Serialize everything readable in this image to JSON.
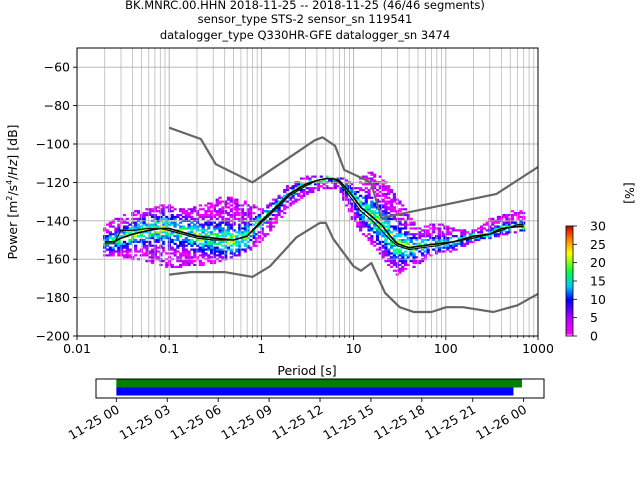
{
  "title_lines": [
    "BK.MNRC.00.HHN   2018-11-25 -- 2018-11-25  (46/46 segments)",
    "sensor_type STS-2 sensor_sn 119541",
    "datalogger_type Q330HR-GFE datalogger_sn 3474"
  ],
  "chart_data": [
    {
      "type": "heatmap",
      "chart_name": "PPSD",
      "xlabel": "Period [s]",
      "ylabel": "Power [m²/s⁴/Hz] [dB]",
      "xscale": "log",
      "xlim": [
        0.01,
        1000
      ],
      "ylim": [
        -200,
        -50
      ],
      "x_ticks": [
        0.01,
        0.1,
        1,
        10,
        100,
        1000
      ],
      "x_tick_labels": [
        "0.01",
        "0.1",
        "1",
        "10",
        "100",
        "1000"
      ],
      "y_ticks": [
        -200,
        -180,
        -160,
        -140,
        -120,
        -100,
        -80,
        -60
      ],
      "y_tick_labels": [
        "−200",
        "−180",
        "−160",
        "−140",
        "−120",
        "−100",
        "−80",
        "−60"
      ],
      "grid": true,
      "colorbar": {
        "label": "[%]",
        "range": [
          0,
          30
        ],
        "ticks": [
          0,
          5,
          10,
          15,
          20,
          25,
          30
        ],
        "colormap": "pqlx"
      },
      "colors": {
        "noise_model": "#666666",
        "mean": "#000000",
        "mode": "#111111"
      },
      "series": [
        {
          "role": "noise_model_high",
          "x": [
            0.1,
            0.22,
            0.32,
            0.8,
            3.8,
            4.6,
            6.3,
            7.9,
            15.4,
            20,
            354.8,
            1000
          ],
          "y": [
            -91.5,
            -97.4,
            -110.5,
            -120,
            -98,
            -96.5,
            -101,
            -113.5,
            -120,
            -138.5,
            -126,
            -112
          ]
        },
        {
          "role": "noise_model_low",
          "x": [
            0.1,
            0.17,
            0.4,
            0.8,
            1.24,
            2.4,
            4.3,
            5,
            6,
            10,
            12,
            15.6,
            21.9,
            31.6,
            45,
            70,
            101,
            154,
            328,
            600,
            1000
          ],
          "y": [
            -168,
            -166.7,
            -166.7,
            -169.2,
            -163.7,
            -148.6,
            -141.1,
            -141.1,
            -149.3,
            -163.7,
            -166,
            -162,
            -177.5,
            -185,
            -187.5,
            -187.5,
            -185,
            -185,
            -187.5,
            -184,
            -178
          ]
        },
        {
          "role": "mean",
          "x": [
            0.02,
            0.025,
            0.03,
            0.04,
            0.06,
            0.08,
            0.1,
            0.14,
            0.2,
            0.3,
            0.5,
            0.7,
            1,
            1.5,
            2,
            3,
            4,
            5,
            6,
            7,
            9,
            12,
            16,
            20,
            25,
            30,
            40,
            55,
            80,
            120,
            200,
            300,
            400,
            600,
            700
          ],
          "y": [
            -151,
            -151,
            -149,
            -147,
            -145,
            -144,
            -144,
            -146,
            -148,
            -149,
            -150,
            -148,
            -140,
            -132,
            -126,
            -121,
            -119,
            -118,
            -118,
            -119,
            -125,
            -133,
            -138,
            -142,
            -148,
            -152,
            -154,
            -153,
            -152,
            -151,
            -148,
            -147,
            -144,
            -143,
            -143
          ]
        },
        {
          "role": "mode",
          "x": [
            0.02,
            0.025,
            0.03,
            0.04,
            0.06,
            0.08,
            0.1,
            0.14,
            0.2,
            0.3,
            0.5,
            0.7,
            1,
            1.5,
            2,
            3,
            4,
            5,
            6,
            7,
            9,
            12,
            16,
            20,
            25,
            30,
            40,
            55,
            80,
            120,
            200,
            300,
            400,
            600,
            700
          ],
          "y": [
            -152,
            -152,
            -145,
            -145,
            -144,
            -144,
            -145,
            -147,
            -149,
            -150,
            -150,
            -148,
            -141,
            -133,
            -127,
            -122,
            -119,
            -118,
            -118,
            -120,
            -127,
            -135,
            -140,
            -145,
            -150,
            -153,
            -155,
            -154,
            -153,
            -151,
            -149,
            -147,
            -145,
            -142,
            -142
          ]
        }
      ],
      "density_envelope": {
        "x": [
          0.02,
          0.03,
          0.05,
          0.08,
          0.1,
          0.15,
          0.25,
          0.4,
          0.7,
          1,
          1.5,
          2,
          3,
          5,
          7,
          10,
          15,
          20,
          30,
          50,
          80,
          120,
          200,
          300,
          400,
          600,
          700
        ],
        "upper": [
          -144,
          -138,
          -135,
          -133,
          -132,
          -135,
          -132,
          -128,
          -131,
          -135,
          -128,
          -122,
          -118,
          -117,
          -117,
          -122,
          -115,
          -118,
          -128,
          -145,
          -142,
          -144,
          -146,
          -140,
          -138,
          -135,
          -135
        ],
        "lower": [
          -158,
          -158,
          -160,
          -162,
          -164,
          -163,
          -162,
          -160,
          -156,
          -150,
          -140,
          -132,
          -126,
          -122,
          -123,
          -140,
          -150,
          -157,
          -168,
          -162,
          -156,
          -155,
          -150,
          -149,
          -147,
          -145,
          -145
        ]
      }
    },
    {
      "type": "bar",
      "chart_name": "coverage",
      "x_tick_labels": [
        "11-25 00",
        "11-25 03",
        "11-25 06",
        "11-25 09",
        "11-25 12",
        "11-25 15",
        "11-25 18",
        "11-25 21",
        "11-26 00"
      ],
      "x_range_hours": [
        -1.2,
        25.2
      ],
      "series": [
        {
          "role": "data_available",
          "color": "#008000",
          "start_hour": 0,
          "end_hour": 23.9
        },
        {
          "role": "psd_computed",
          "color": "#0000ff",
          "start_hour": 0,
          "end_hour": 23.4
        }
      ]
    }
  ]
}
